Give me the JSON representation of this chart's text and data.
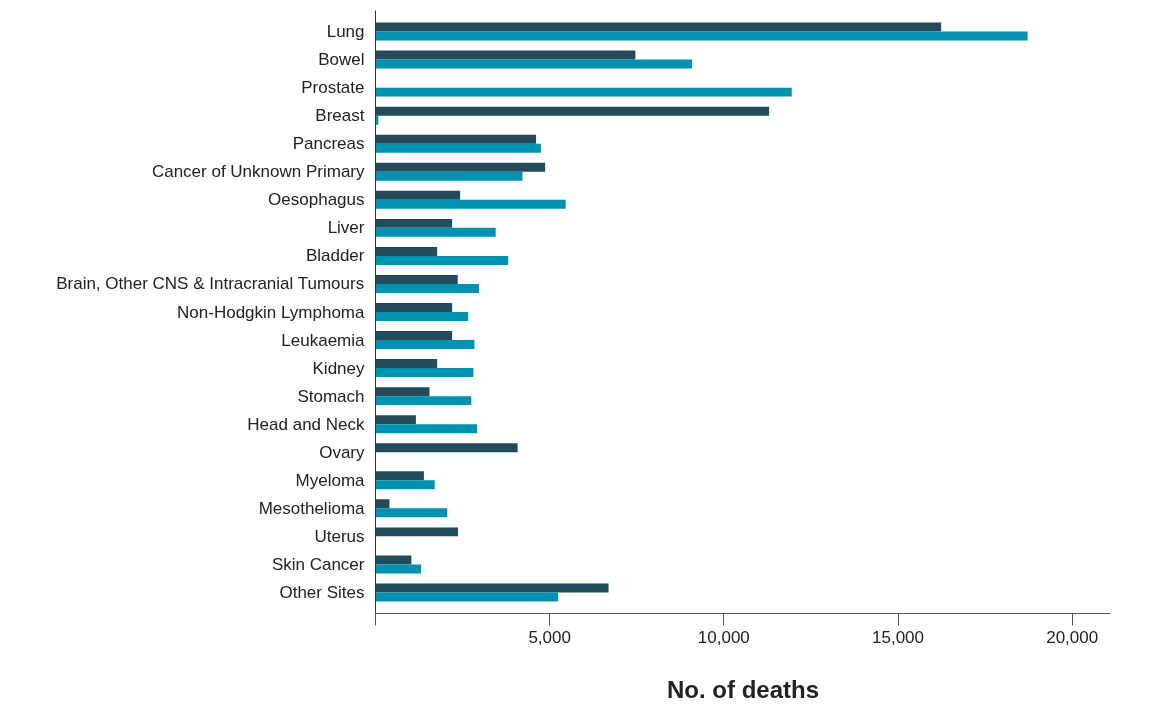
{
  "chart_data": {
    "type": "bar",
    "orientation": "horizontal",
    "xlabel": "No. of deaths",
    "categories": [
      "Lung",
      "Bowel",
      "Prostate",
      "Breast",
      "Pancreas",
      "Cancer of Unknown Primary",
      "Oesophagus",
      "Liver",
      "Bladder",
      "Brain, Other CNS & Intracranial Tumours",
      "Non-Hodgkin Lymphoma",
      "Leukaemia",
      "Kidney",
      "Stomach",
      "Head and Neck",
      "Ovary",
      "Myeloma",
      "Mesothelioma",
      "Uterus",
      "Skin Cancer",
      "Other Sites"
    ],
    "series": [
      {
        "color": "#234b5a",
        "values": [
          16240,
          7460,
          null,
          11300,
          4610,
          4870,
          2430,
          2200,
          1770,
          2360,
          2200,
          2200,
          1770,
          1550,
          1160,
          4080,
          1390,
          400,
          2370,
          1030,
          6690
        ]
      },
      {
        "color": "#0090b0",
        "values": [
          18720,
          9090,
          11950,
          80,
          4750,
          4220,
          5460,
          3450,
          3810,
          2970,
          2660,
          2840,
          2810,
          2750,
          2920,
          null,
          1700,
          2060,
          null,
          1310,
          5240
        ]
      }
    ],
    "xlim": [
      0,
      21100
    ],
    "xticks": [
      {
        "value": 0,
        "label": null
      },
      {
        "value": 5000,
        "label": "5,000"
      },
      {
        "value": 10000,
        "label": "10,000"
      },
      {
        "value": 15000,
        "label": "15,000"
      },
      {
        "value": 20000,
        "label": "20,000"
      }
    ],
    "grid": false
  }
}
